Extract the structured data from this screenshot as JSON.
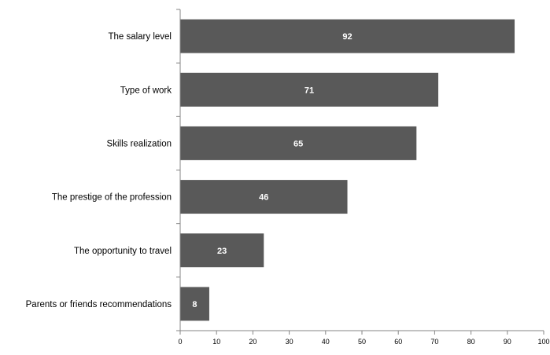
{
  "chart_data": {
    "type": "bar",
    "orientation": "horizontal",
    "categories": [
      "The salary level",
      "Type of work",
      "Skills realization",
      "The prestige of the profession",
      "The opportunity to travel",
      "Parents or friends recommendations"
    ],
    "values": [
      92,
      71,
      65,
      46,
      23,
      8
    ],
    "xlim": [
      0,
      100
    ],
    "xticks": [
      "0",
      "10",
      "20",
      "30",
      "40",
      "50",
      "60",
      "70",
      "80",
      "90",
      "100"
    ],
    "bar_color": "#595959",
    "data_label_color": "#ffffff",
    "grid": false,
    "legend": "none"
  }
}
